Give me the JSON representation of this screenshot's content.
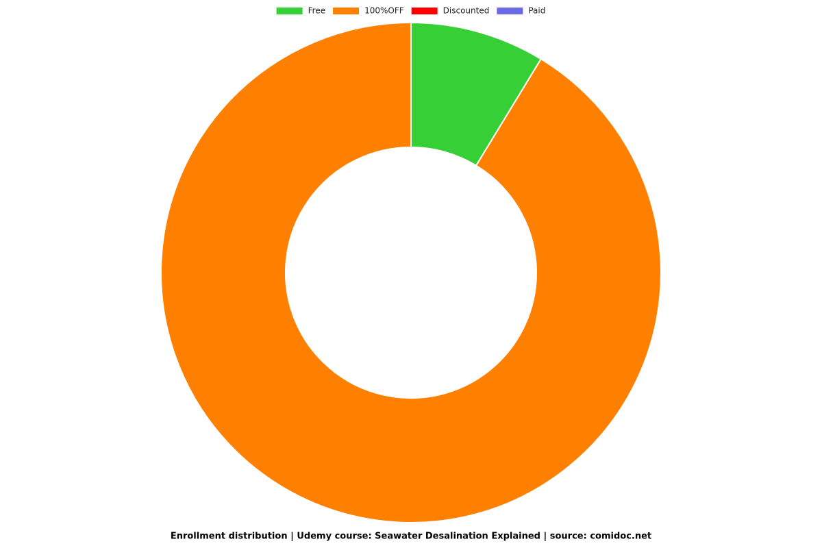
{
  "chart_data": {
    "type": "doughnut",
    "title": "Enrollment distribution | Udemy course: Seawater Desalination Explained | source: comidoc.net",
    "series": [
      {
        "name": "Free",
        "color": "#36cf36",
        "values": [
          8.7
        ]
      },
      {
        "name": "100%OFF",
        "color": "#ff8000",
        "values": [
          91.3
        ]
      },
      {
        "name": "Discounted",
        "color": "#ff0000",
        "values": [
          0
        ]
      },
      {
        "name": "Paid",
        "color": "#6b6bea",
        "values": [
          0
        ]
      }
    ],
    "legend": "top"
  }
}
